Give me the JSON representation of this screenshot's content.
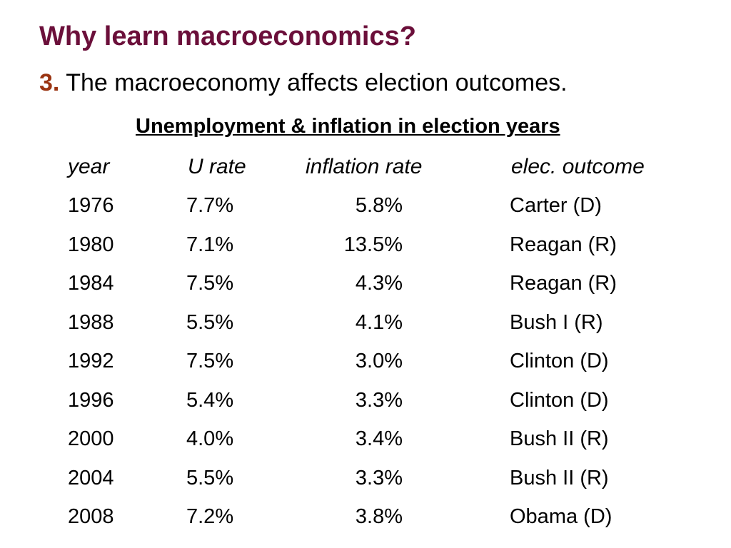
{
  "slide": {
    "title": "Why learn macroeconomics?",
    "subtitle_number": "3.",
    "subtitle_text": " The macroeconomy affects election outcomes.",
    "table_caption": "Unemployment & inflation in election years",
    "colors": {
      "title": "#6b0f3a",
      "number": "#9a3412"
    }
  },
  "table": {
    "headers": [
      "year",
      "U rate",
      "inflation rate",
      "elec. outcome"
    ],
    "rows": [
      [
        "1976",
        "7.7%",
        "5.8%",
        "Carter (D)"
      ],
      [
        "1980",
        "7.1%",
        "13.5%",
        "Reagan (R)"
      ],
      [
        "1984",
        "7.5%",
        "4.3%",
        "Reagan (R)"
      ],
      [
        "1988",
        "5.5%",
        "4.1%",
        "Bush I (R)"
      ],
      [
        "1992",
        "7.5%",
        "3.0%",
        "Clinton (D)"
      ],
      [
        "1996",
        "5.4%",
        "3.3%",
        "Clinton (D)"
      ],
      [
        "2000",
        "4.0%",
        "3.4%",
        "Bush II (R)"
      ],
      [
        "2004",
        "5.5%",
        "3.3%",
        "Bush II (R)"
      ],
      [
        "2008",
        "7.2%",
        "3.8%",
        "Obama (D)"
      ]
    ]
  }
}
